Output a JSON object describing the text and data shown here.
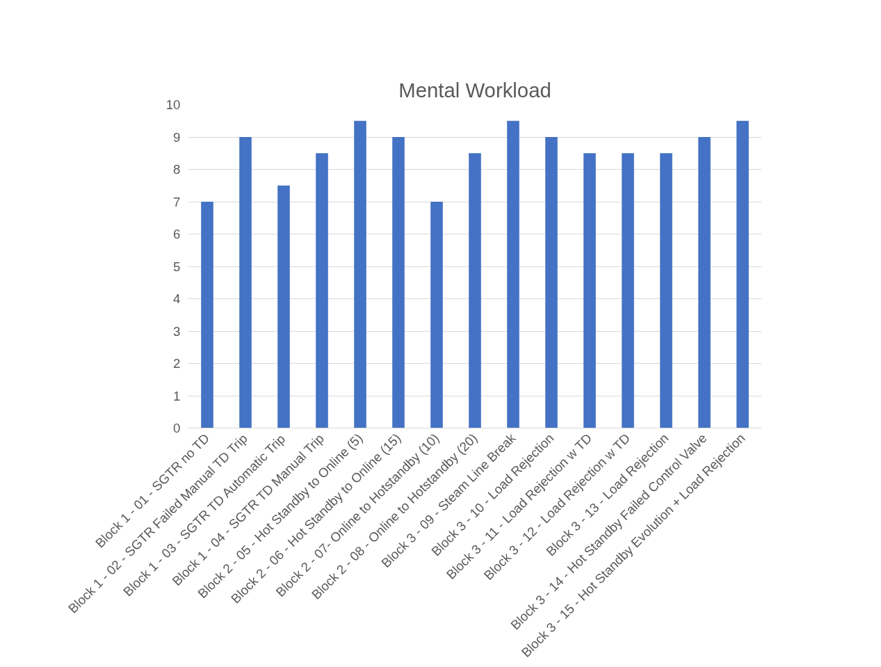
{
  "chart_data": {
    "type": "bar",
    "title": "Mental Workload",
    "categories": [
      "Block 1 - 01 - SGTR no TD",
      "Block 1 - 02 - SGTR Failed Manual TD Trip",
      "Block 1 - 03 - SGTR TD Automatic Trip",
      "Block 1 - 04 - SGTR TD Manual Trip",
      "Block 2 - 05 - Hot Standby to Online (5)",
      "Block 2 - 06 - Hot Standby to Online (15)",
      "Block 2 - 07- Online to Hotstandby (10)",
      "Block 2 - 08 - Online to Hotstandby (20)",
      "Block 3 - 09 - Steam Line Break",
      "Block 3 - 10 - Load Rejection",
      "Block 3 - 11 - Load Rejection w TD",
      "Block 3 - 12 - Load Rejection w TD",
      "Block 3 - 13 - Load Rejection",
      "Block 3 - 14 - Hot Standby Failed Control Valve",
      "Block 3 - 15 - Hot Standby Evolution + Load Rejection"
    ],
    "values": [
      7,
      9,
      7.5,
      8.5,
      9.5,
      9,
      7,
      8.5,
      9.5,
      9,
      8.5,
      8.5,
      8.5,
      9,
      9.5
    ],
    "color": "#4472c4",
    "ylim": [
      0,
      10
    ],
    "yticks": [
      0,
      1,
      2,
      3,
      4,
      5,
      6,
      7,
      8,
      9,
      10
    ],
    "grid": "y"
  }
}
